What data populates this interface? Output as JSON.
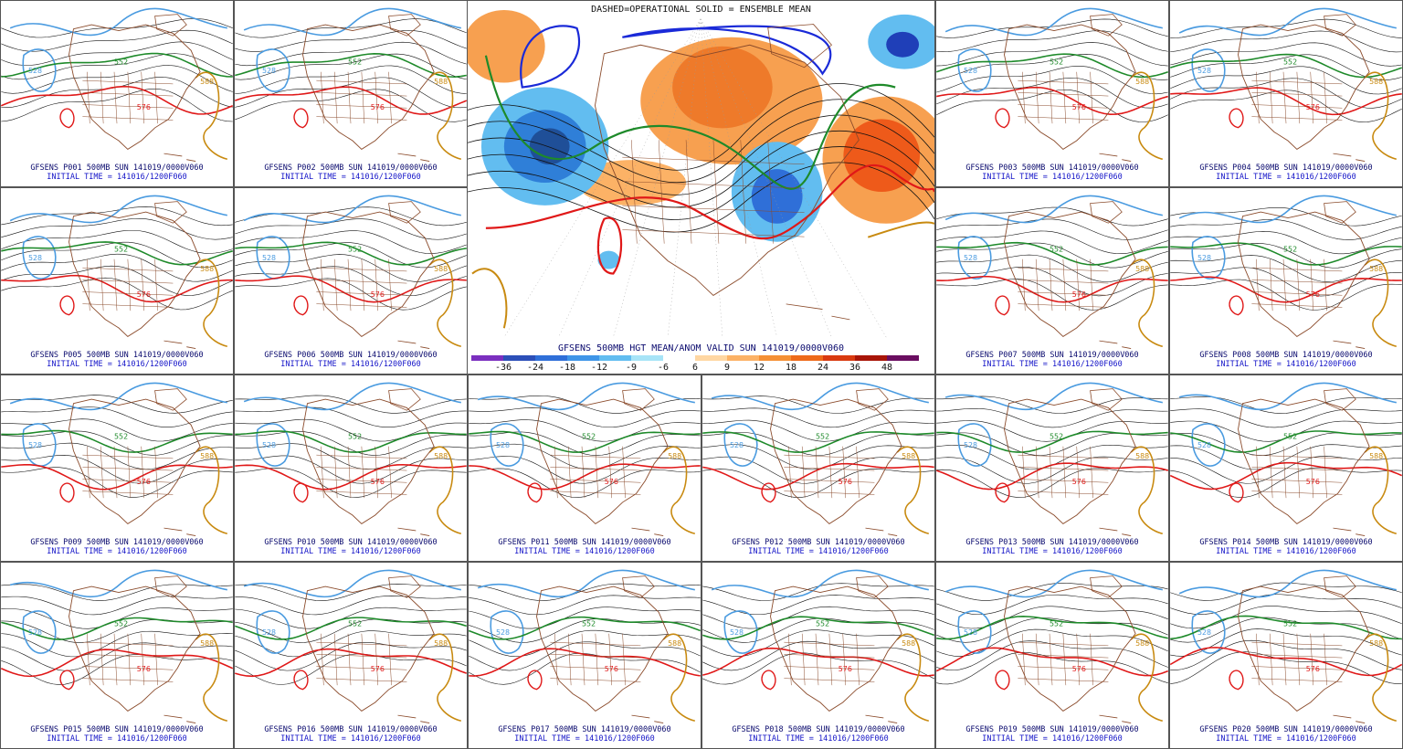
{
  "main": {
    "top_label": "DASHED=OPERATIONAL  SOLID = ENSEMBLE MEAN",
    "bottom_label": "GFSENS 500MB HGT MEAN/ANOM VALID SUN 141019/0000V060",
    "colorbar_ticks": [
      "-36",
      "-24",
      "-18",
      "-12",
      "-9",
      "-6",
      "6",
      "9",
      "12",
      "18",
      "24",
      "36",
      "48"
    ],
    "colorbar_colors": [
      "#7b2fbf",
      "#2c4fb8",
      "#2f6fd8",
      "#3f95e8",
      "#62bdf0",
      "#a7e4f7",
      "#ffffff",
      "#ffd7a3",
      "#fcb266",
      "#f59035",
      "#ee6a1a",
      "#d93a10",
      "#a81508",
      "#6a0d60"
    ]
  },
  "members": [
    {
      "line1": "GFSENS P001 500MB SUN 141019/0000V060",
      "line2": "INITIAL TIME = 141016/1200F060"
    },
    {
      "line1": "GFSENS P002 500MB SUN 141019/0000V060",
      "line2": "INITIAL TIME = 141016/1200F060"
    },
    {
      "line1": "GFSENS P003 500MB SUN 141019/0000V060",
      "line2": "INITIAL TIME = 141016/1200F060"
    },
    {
      "line1": "GFSENS P004 500MB SUN 141019/0000V060",
      "line2": "INITIAL TIME = 141016/1200F060"
    },
    {
      "line1": "GFSENS P005 500MB SUN 141019/0000V060",
      "line2": "INITIAL TIME = 141016/1200F060"
    },
    {
      "line1": "GFSENS P006 500MB SUN 141019/0000V060",
      "line2": "INITIAL TIME = 141016/1200F060"
    },
    {
      "line1": "GFSENS P007 500MB SUN 141019/0000V060",
      "line2": "INITIAL TIME = 141016/1200F060"
    },
    {
      "line1": "GFSENS P008 500MB SUN 141019/0000V060",
      "line2": "INITIAL TIME = 141016/1200F060"
    },
    {
      "line1": "GFSENS P009 500MB SUN 141019/0000V060",
      "line2": "INITIAL TIME = 141016/1200F060"
    },
    {
      "line1": "GFSENS P010 500MB SUN 141019/0000V060",
      "line2": "INITIAL TIME = 141016/1200F060"
    },
    {
      "line1": "GFSENS P011 500MB SUN 141019/0000V060",
      "line2": "INITIAL TIME = 141016/1200F060"
    },
    {
      "line1": "GFSENS P012 500MB SUN 141019/0000V060",
      "line2": "INITIAL TIME = 141016/1200F060"
    },
    {
      "line1": "GFSENS P013 500MB SUN 141019/0000V060",
      "line2": "INITIAL TIME = 141016/1200F060"
    },
    {
      "line1": "GFSENS P014 500MB SUN 141019/0000V060",
      "line2": "INITIAL TIME = 141016/1200F060"
    },
    {
      "line1": "GFSENS P015 500MB SUN 141019/0000V060",
      "line2": "INITIAL TIME = 141016/1200F060"
    },
    {
      "line1": "GFSENS P016 500MB SUN 141019/0000V060",
      "line2": "INITIAL TIME = 141016/1200F060"
    },
    {
      "line1": "GFSENS P017 500MB SUN 141019/0000V060",
      "line2": "INITIAL TIME = 141016/1200F060"
    },
    {
      "line1": "GFSENS P018 500MB SUN 141019/0000V060",
      "line2": "INITIAL TIME = 141016/1200F060"
    },
    {
      "line1": "GFSENS P019 500MB SUN 141019/0000V060",
      "line2": "INITIAL TIME = 141016/1200F060"
    },
    {
      "line1": "GFSENS P020 500MB SUN 141019/0000V060",
      "line2": "INITIAL TIME = 141016/1200F060"
    }
  ],
  "contour_labels": {
    "blue": "528",
    "green": "552",
    "red": "576",
    "gold": "588"
  },
  "colors": {
    "blue": "#4a9be0",
    "green": "#1e8a2a",
    "red": "#e01818",
    "gold": "#c88a10",
    "map": "#8a4a2a",
    "black": "#111111"
  }
}
